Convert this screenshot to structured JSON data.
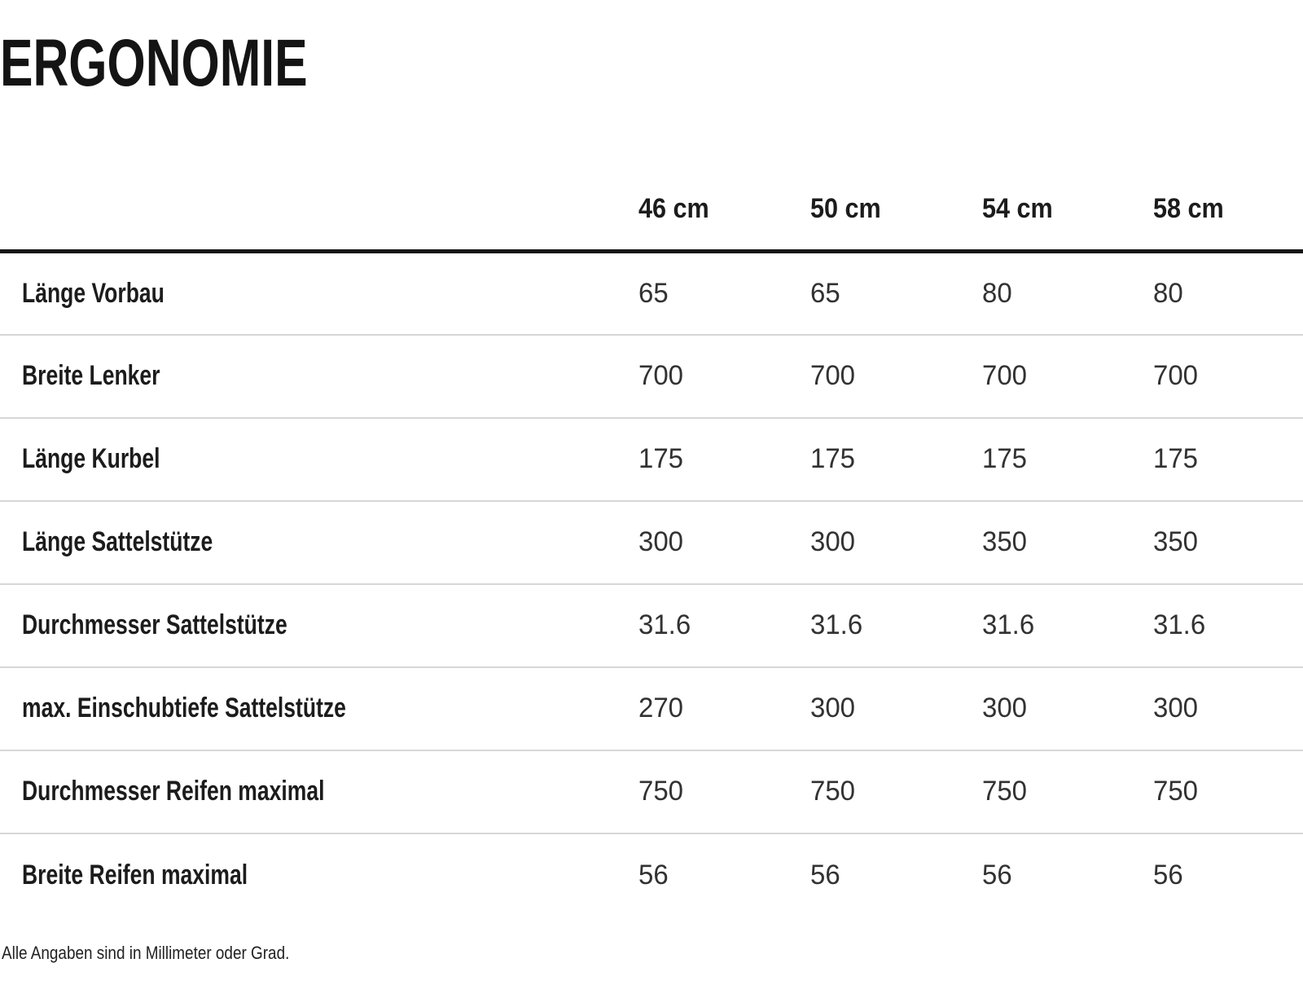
{
  "chart_data": {
    "type": "table",
    "title": "ERGONOMIE",
    "columns": [
      "46 cm",
      "50 cm",
      "54 cm",
      "58 cm"
    ],
    "rows": [
      {
        "label": "Länge Vorbau",
        "values": [
          "65",
          "65",
          "80",
          "80"
        ]
      },
      {
        "label": "Breite Lenker",
        "values": [
          "700",
          "700",
          "700",
          "700"
        ]
      },
      {
        "label": "Länge Kurbel",
        "values": [
          "175",
          "175",
          "175",
          "175"
        ]
      },
      {
        "label": "Länge Sattelstütze",
        "values": [
          "300",
          "300",
          "350",
          "350"
        ]
      },
      {
        "label": "Durchmesser Sattelstütze",
        "values": [
          "31.6",
          "31.6",
          "31.6",
          "31.6"
        ]
      },
      {
        "label": "max. Einschubtiefe Sattelstütze",
        "values": [
          "270",
          "300",
          "300",
          "300"
        ]
      },
      {
        "label": "Durchmesser Reifen maximal",
        "values": [
          "750",
          "750",
          "750",
          "750"
        ]
      },
      {
        "label": "Breite Reifen maximal",
        "values": [
          "56",
          "56",
          "56",
          "56"
        ]
      }
    ],
    "footnote": "Alle Angaben sind in Millimeter oder Grad.",
    "layout_hints": {
      "units": "mm or degrees",
      "grid": "horizontal row dividers only",
      "header_rule": "thick black line under column headers"
    }
  },
  "colors": {
    "background": "#ffffff",
    "heading_text": "#141414",
    "label_text": "#1c1c1c",
    "value_text": "#323232",
    "heavy_rule": "#161616",
    "row_divider": "#d7d7d9"
  }
}
